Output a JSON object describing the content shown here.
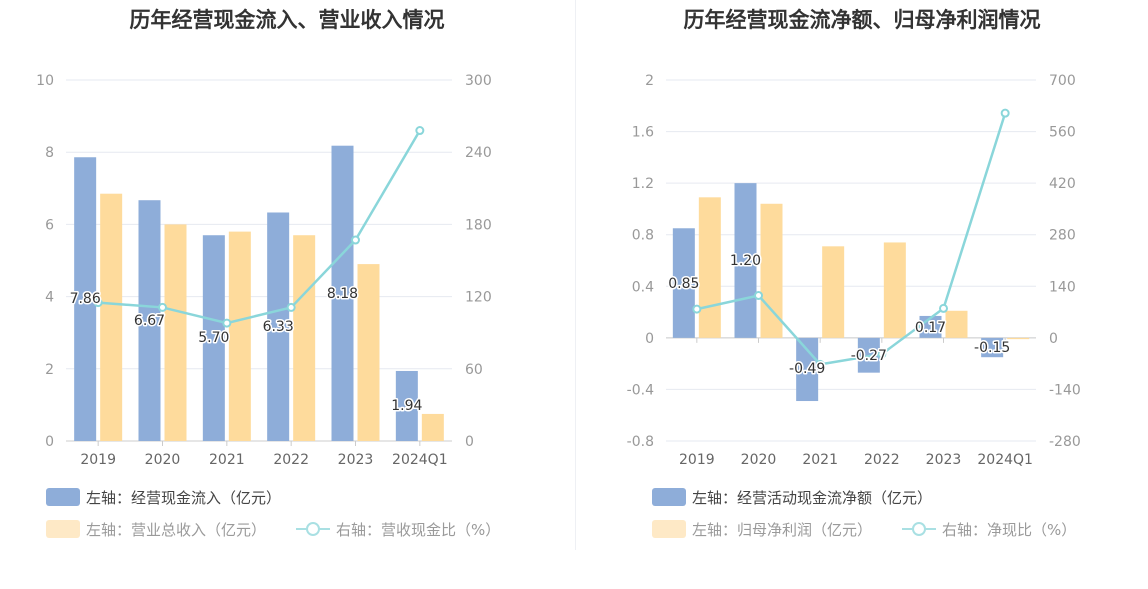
{
  "colors": {
    "blue": "#8eadd9",
    "orange": "#fedb9c",
    "cyan": "#8ad6da",
    "legend_orange": "#fee9c6",
    "grid": "#e6e9f0",
    "axis": "#cccccc"
  },
  "chart_data": [
    {
      "type": "bar",
      "title": "历年经营现金流入、营业收入情况",
      "categories": [
        "2019",
        "2020",
        "2021",
        "2022",
        "2023",
        "2024Q1"
      ],
      "y_left": {
        "min": 0,
        "max": 10,
        "ticks": [
          "0",
          "2",
          "4",
          "6",
          "8",
          "10"
        ]
      },
      "y_right": {
        "min": 0,
        "max": 300,
        "ticks": [
          "0",
          "60",
          "120",
          "180",
          "240",
          "300"
        ]
      },
      "grid": true,
      "legend_position": "bottom-left",
      "series": [
        {
          "name": "左轴：经营现金流入（亿元）",
          "kind": "bar",
          "axis": "left",
          "values": [
            7.86,
            6.67,
            5.7,
            6.33,
            8.18,
            1.94
          ],
          "labels": [
            "7.86",
            "6.67",
            "5.70",
            "6.33",
            "8.18",
            "1.94"
          ]
        },
        {
          "name": "左轴：营业总收入（亿元）",
          "kind": "bar",
          "axis": "left",
          "values": [
            6.85,
            6.0,
            5.8,
            5.7,
            4.9,
            0.75
          ]
        },
        {
          "name": "右轴：营收现金比（%）",
          "kind": "line",
          "axis": "right",
          "values": [
            115,
            111,
            98,
            111,
            167,
            258
          ]
        }
      ]
    },
    {
      "type": "bar",
      "title": "历年经营现金流净额、归母净利润情况",
      "categories": [
        "2019",
        "2020",
        "2021",
        "2022",
        "2023",
        "2024Q1"
      ],
      "y_left": {
        "min": -0.8,
        "max": 2,
        "ticks": [
          "-0.8",
          "-0.4",
          "0",
          "0.4",
          "0.8",
          "1.2",
          "1.6",
          "2"
        ]
      },
      "y_right": {
        "min": -280,
        "max": 700,
        "ticks": [
          "-280",
          "-140",
          "0",
          "140",
          "280",
          "420",
          "560",
          "700"
        ]
      },
      "grid": true,
      "legend_position": "bottom-left",
      "series": [
        {
          "name": "左轴：经营活动现金流净额（亿元）",
          "kind": "bar",
          "axis": "left",
          "values": [
            0.85,
            1.2,
            -0.49,
            -0.27,
            0.17,
            -0.15
          ],
          "labels": [
            "0.85",
            "1.20",
            "-0.49",
            "-0.27",
            "0.17",
            "-0.15"
          ]
        },
        {
          "name": "左轴：归母净利润（亿元）",
          "kind": "bar",
          "axis": "left",
          "values": [
            1.09,
            1.04,
            0.71,
            0.74,
            0.21,
            -0.01
          ]
        },
        {
          "name": "右轴：净现比（%）",
          "kind": "line",
          "axis": "right",
          "values": [
            78,
            115,
            -72,
            -44,
            80,
            610
          ]
        }
      ]
    }
  ]
}
